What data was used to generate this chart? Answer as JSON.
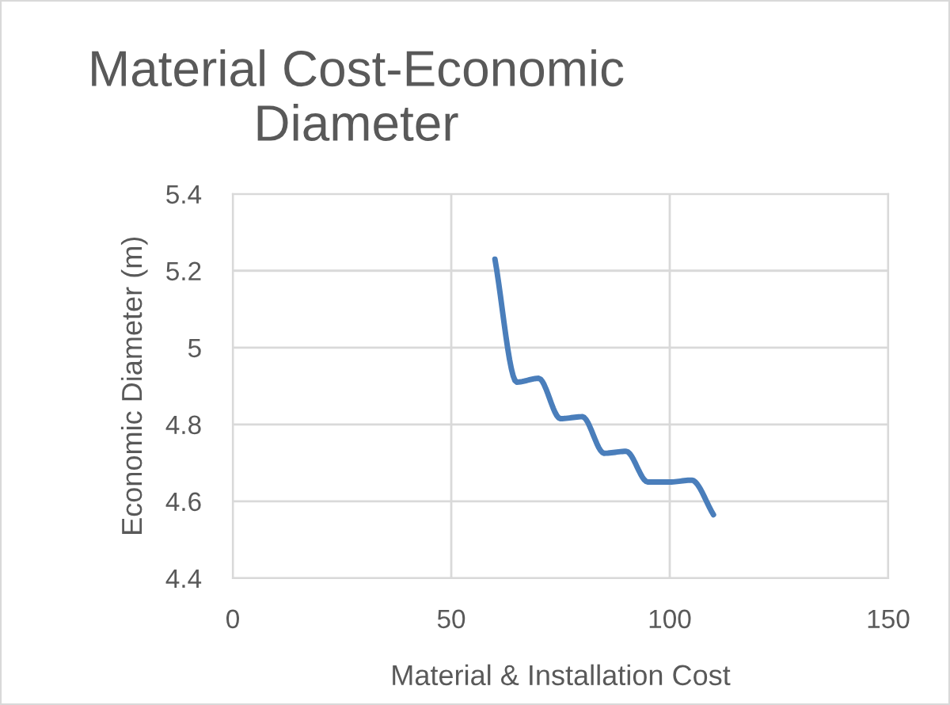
{
  "chart_data": {
    "type": "line",
    "title": "Material Cost-Economic Diameter",
    "xlabel": "Material & Installation Cost",
    "ylabel": "Economic Diameter (m)",
    "x": [
      60,
      65,
      70,
      75,
      80,
      85,
      90,
      95,
      100,
      105,
      110
    ],
    "series": [
      {
        "color": "#4a7ebb",
        "values": [
          5.23,
          4.91,
          4.92,
          4.815,
          4.82,
          4.725,
          4.73,
          4.65,
          4.65,
          4.655,
          4.565
        ]
      }
    ],
    "xlim": [
      0,
      150
    ],
    "xticks": [
      0,
      50,
      100,
      150
    ],
    "ylim": [
      4.4,
      5.4
    ],
    "yticks": [
      4.4,
      4.6,
      4.8,
      5,
      5.2,
      5.4
    ],
    "grid": true,
    "marker": "none",
    "line_style": "solid"
  }
}
